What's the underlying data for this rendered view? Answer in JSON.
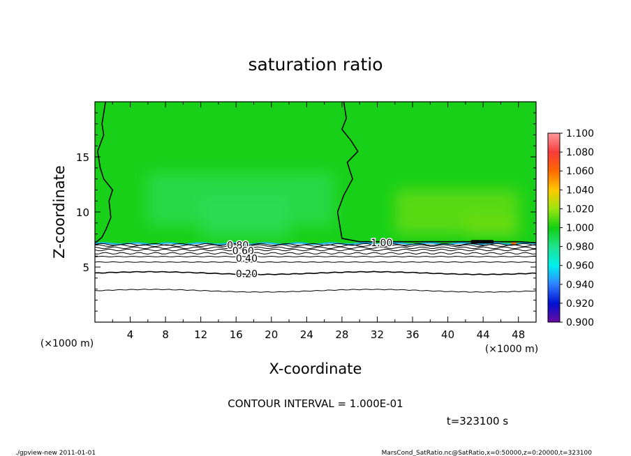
{
  "chart_data": {
    "type": "heatmap",
    "title": "saturation ratio",
    "xlabel": "X-coordinate",
    "ylabel": "Z-coordinate",
    "x_unit_left": "(×1000 m)",
    "x_unit_right": "(×1000 m)",
    "xlim": [
      0,
      50
    ],
    "ylim": [
      0,
      20
    ],
    "x_ticks": [
      4,
      8,
      12,
      16,
      20,
      24,
      28,
      32,
      36,
      40,
      44,
      48
    ],
    "y_ticks": [
      5,
      10,
      15
    ],
    "contour_interval_text": "CONTOUR INTERVAL = 1.000E-01",
    "time_text": "t=323100 s",
    "contour_labels": [
      {
        "text": "0.80",
        "x": 16.2,
        "z": 7.0
      },
      {
        "text": "0.60",
        "x": 16.8,
        "z": 6.5
      },
      {
        "text": "0.40",
        "x": 17.2,
        "z": 5.8
      },
      {
        "text": "0.20",
        "x": 17.2,
        "z": 4.4
      },
      {
        "text": "1.00",
        "x": 32.5,
        "z": 7.2
      }
    ],
    "contours": [
      {
        "level": 1.0,
        "x": [
          1.2,
          0.8,
          1.0,
          0.3,
          0.6,
          1.0,
          2.0,
          1.6,
          1.8,
          1.3,
          0.8,
          0.2,
          0.0
        ],
        "z": [
          20,
          18,
          17,
          15.5,
          14,
          13,
          12,
          11,
          9.5,
          8.5,
          7.7,
          7.3,
          7.2
        ]
      },
      {
        "level": 1.0,
        "x": [
          28.2,
          28.5,
          28.0,
          29.0,
          29.8,
          28.6,
          29.2,
          28.2,
          27.5,
          28.0,
          30.0,
          36.0,
          42.0,
          48.0,
          50.0
        ],
        "z": [
          20,
          18.5,
          17.5,
          16.5,
          15.5,
          14.5,
          13,
          11.5,
          10,
          7.6,
          7.3,
          7.3,
          7.3,
          7.3,
          7.2
        ]
      }
    ],
    "bands": [
      {
        "level": 0.9,
        "z": 7.05
      },
      {
        "level": 0.8,
        "z": 6.95
      },
      {
        "level": 0.7,
        "z": 6.75
      },
      {
        "level": 0.6,
        "z": 6.55
      },
      {
        "level": 0.5,
        "z": 6.25
      },
      {
        "level": 0.4,
        "z": 5.95
      },
      {
        "level": 0.3,
        "z": 5.45
      },
      {
        "level": 0.2,
        "z": 4.45
      },
      {
        "level": 0.1,
        "z": 2.85
      }
    ],
    "colorbar": {
      "levels": [
        "1.100",
        "1.080",
        "1.060",
        "1.040",
        "1.020",
        "1.000",
        "0.980",
        "0.960",
        "0.940",
        "0.920",
        "0.900"
      ],
      "colors": [
        "#ff9a9a",
        "#f73a3a",
        "#ff6a00",
        "#ffc800",
        "#9be60f",
        "#10d010",
        "#1ee28c",
        "#00f0f0",
        "#3080ff",
        "#0010d0",
        "#6a0aa0"
      ]
    },
    "field_colors": {
      "green": "#19d019",
      "light_green": "#2fdc55",
      "yellow_green": "#6fdc10"
    }
  },
  "footer": {
    "left": "./gpview-new   2011-01-01",
    "right": "MarsCond_SatRatio.nc@SatRatio,x=0:50000,z=0:20000,t=323100"
  }
}
